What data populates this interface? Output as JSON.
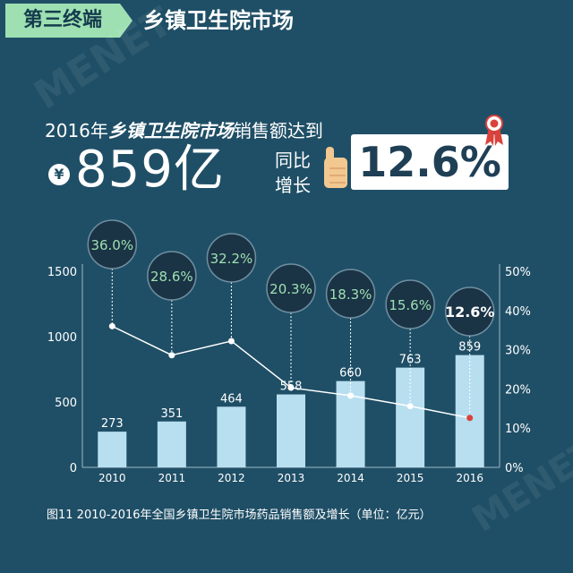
{
  "header": {
    "tag": "第三终端",
    "title": "乡镇卫生院市场"
  },
  "headline": {
    "pre": "2016年",
    "em": "乡镇卫生院市场",
    "post": "销售额达到"
  },
  "amount": {
    "symbol": "¥",
    "value": "859亿"
  },
  "yoy": {
    "line1": "同比",
    "line2": "增长"
  },
  "growth": "12.6%",
  "caption": "图11  2010-2016年全国乡镇卫生院市场药品销售额及增长（单位：亿元）",
  "colors": {
    "background": "#1f4f66",
    "accent": "#9ee0b2",
    "bar": "#b8dff0",
    "line": "#ffffff",
    "circle": "#1a3345"
  },
  "chart_data": {
    "type": "bar",
    "categories": [
      "2010",
      "2011",
      "2012",
      "2013",
      "2014",
      "2015",
      "2016"
    ],
    "series": [
      {
        "type": "bar",
        "axis": "left",
        "values": [
          273,
          351,
          464,
          558,
          660,
          763,
          859
        ],
        "labels": [
          "273",
          "351",
          "464",
          "558",
          "660",
          "763",
          "859"
        ]
      },
      {
        "type": "line",
        "axis": "right",
        "values": [
          36.0,
          28.6,
          32.2,
          20.3,
          18.3,
          15.6,
          12.6
        ],
        "labels": [
          "36.0%",
          "28.6%",
          "32.2%",
          "20.3%",
          "18.3%",
          "15.6%",
          "12.6%"
        ]
      }
    ],
    "left_axis": {
      "ylim": [
        0,
        1500
      ],
      "ticks": [
        "0",
        "500",
        "1000",
        "1500"
      ]
    },
    "right_axis": {
      "ylim": [
        0,
        50
      ],
      "ticks": [
        "0%",
        "10%",
        "20%",
        "30%",
        "40%",
        "50%"
      ]
    },
    "highlight": "2016",
    "grid": false
  }
}
